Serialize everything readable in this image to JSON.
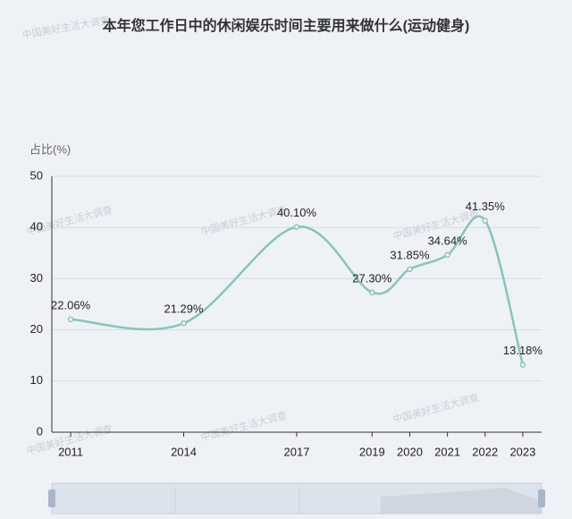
{
  "chart_data": {
    "type": "line",
    "title": "本年您工作日中的休闲娱乐时间主要用来做什么(运动健身)",
    "y_label": "占比(%)",
    "watermark": "中国美好生活大调查",
    "x": [
      2011,
      2014,
      2017,
      2019,
      2020,
      2021,
      2022,
      2023
    ],
    "values": [
      22.06,
      21.29,
      40.1,
      27.3,
      31.85,
      34.64,
      41.35,
      13.18
    ],
    "value_labels": [
      "22.06%",
      "21.29%",
      "40.10%",
      "27.30%",
      "31.85%",
      "34.64%",
      "41.35%",
      "13.18%"
    ],
    "color": "#86c5b9",
    "xlim": [
      2010.5,
      2023.5
    ],
    "ylim": [
      0,
      50
    ],
    "yticks": [
      0,
      10,
      20,
      30,
      40,
      50
    ],
    "grid": true
  }
}
